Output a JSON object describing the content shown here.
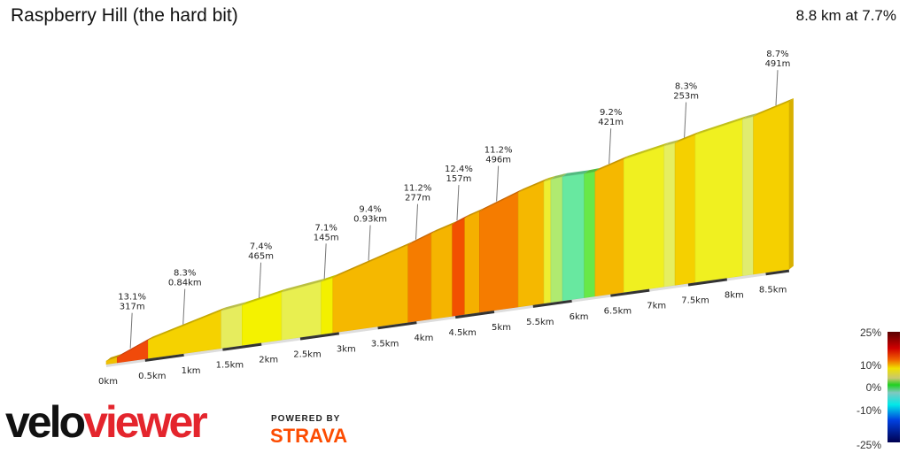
{
  "header": {
    "title": "Raspberry Hill (the hard bit)",
    "summary": "8.8 km at 7.7%"
  },
  "chart_data": {
    "type": "area",
    "title": "Raspberry Hill (the hard bit)",
    "x_unit": "km",
    "xlim": [
      0,
      8.8
    ],
    "x_ticks": [
      "0km",
      "0.5km",
      "1km",
      "1.5km",
      "2km",
      "2.5km",
      "3km",
      "3.5km",
      "4km",
      "4.5km",
      "5km",
      "5.5km",
      "6km",
      "6.5km",
      "7km",
      "7.5km",
      "8km",
      "8.5km"
    ],
    "segments": [
      {
        "start": 0,
        "end": 0.14,
        "gradient": 6,
        "color": "#f0c000"
      },
      {
        "start": 0.14,
        "end": 0.54,
        "gradient": 13.1,
        "color": "#f04a0a"
      },
      {
        "start": 0.54,
        "end": 1.48,
        "gradient": 8.3,
        "color": "#f5d200"
      },
      {
        "start": 1.48,
        "end": 1.75,
        "gradient": 4,
        "color": "#e6ec5e"
      },
      {
        "start": 1.75,
        "end": 2.26,
        "gradient": 6,
        "color": "#f4f200"
      },
      {
        "start": 2.26,
        "end": 2.77,
        "gradient": 4,
        "color": "#e8ef50"
      },
      {
        "start": 2.77,
        "end": 2.92,
        "gradient": 6,
        "color": "#f3f000"
      },
      {
        "start": 2.92,
        "end": 3.89,
        "gradient": 9.4,
        "color": "#f5b800"
      },
      {
        "start": 3.89,
        "end": 4.19,
        "gradient": 11.2,
        "color": "#f57c00"
      },
      {
        "start": 4.19,
        "end": 4.46,
        "gradient": 9,
        "color": "#f5b400"
      },
      {
        "start": 4.46,
        "end": 4.62,
        "gradient": 12.4,
        "color": "#f25000"
      },
      {
        "start": 4.62,
        "end": 4.81,
        "gradient": 9.5,
        "color": "#f5b000"
      },
      {
        "start": 4.81,
        "end": 5.31,
        "gradient": 11.2,
        "color": "#f57c00"
      },
      {
        "start": 5.31,
        "end": 5.64,
        "gradient": 9,
        "color": "#f5b800"
      },
      {
        "start": 5.64,
        "end": 5.73,
        "gradient": 5,
        "color": "#eeee30"
      },
      {
        "start": 5.73,
        "end": 5.88,
        "gradient": 3,
        "color": "#b0ea70"
      },
      {
        "start": 5.88,
        "end": 6.16,
        "gradient": 0,
        "color": "#68e8a0"
      },
      {
        "start": 6.16,
        "end": 6.3,
        "gradient": 1.5,
        "color": "#68e848"
      },
      {
        "start": 6.3,
        "end": 6.67,
        "gradient": 9.2,
        "color": "#f5b800"
      },
      {
        "start": 6.67,
        "end": 7.19,
        "gradient": 6,
        "color": "#f0f020"
      },
      {
        "start": 7.19,
        "end": 7.33,
        "gradient": 4,
        "color": "#e6ee60"
      },
      {
        "start": 7.33,
        "end": 7.59,
        "gradient": 8.3,
        "color": "#f5d000"
      },
      {
        "start": 7.59,
        "end": 8.2,
        "gradient": 6,
        "color": "#f0f020"
      },
      {
        "start": 8.2,
        "end": 8.34,
        "gradient": 4,
        "color": "#e0ec70"
      },
      {
        "start": 8.34,
        "end": 8.8,
        "gradient": 8.7,
        "color": "#f5d000"
      }
    ],
    "annotations": [
      {
        "km": 0.31,
        "gradient": "13.1%",
        "length": "317m"
      },
      {
        "km": 0.99,
        "gradient": "8.3%",
        "length": "0.84km"
      },
      {
        "km": 1.97,
        "gradient": "7.4%",
        "length": "465m"
      },
      {
        "km": 2.81,
        "gradient": "7.1%",
        "length": "145m"
      },
      {
        "km": 3.38,
        "gradient": "9.4%",
        "length": "0.93km"
      },
      {
        "km": 3.99,
        "gradient": "11.2%",
        "length": "277m"
      },
      {
        "km": 4.52,
        "gradient": "12.4%",
        "length": "157m"
      },
      {
        "km": 5.03,
        "gradient": "11.2%",
        "length": "496m"
      },
      {
        "km": 6.48,
        "gradient": "9.2%",
        "length": "421m"
      },
      {
        "km": 7.45,
        "gradient": "8.3%",
        "length": "253m"
      },
      {
        "km": 8.63,
        "gradient": "8.7%",
        "length": "491m"
      }
    ],
    "legend": {
      "labels": [
        "25%",
        "10%",
        "0%",
        "-10%",
        "-25%"
      ],
      "values": [
        25,
        10,
        0,
        -10,
        -25
      ],
      "placement": "bottom-right"
    }
  },
  "branding": {
    "logo_left": "velo",
    "logo_right": "viewer",
    "powered_by": "POWERED BY",
    "strava": "STRAVA"
  }
}
